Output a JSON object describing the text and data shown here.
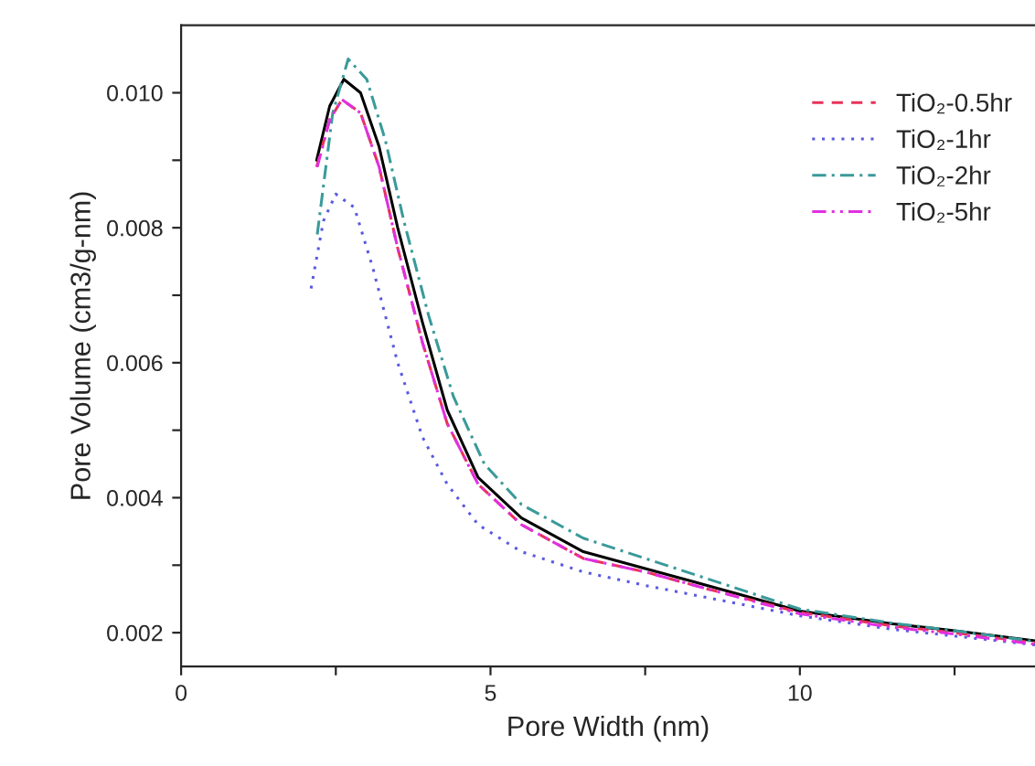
{
  "chart_data": {
    "type": "line",
    "xlabel": "Pore Width (nm)",
    "ylabel": "Pore Volume (cm3/g-nm)",
    "xlim": [
      0,
      13.8
    ],
    "xticks": [
      0,
      {
        "value": 2.5,
        "label": null
      },
      5,
      {
        "value": 7.5,
        "label": null
      },
      10,
      {
        "value": 12.5,
        "label": null
      }
    ],
    "ylim": [
      0.0015,
      0.011
    ],
    "yticks": [
      0.002,
      {
        "value": 0.003,
        "label": null
      },
      0.004,
      {
        "value": 0.005,
        "label": null
      },
      0.006,
      {
        "value": 0.007,
        "label": null
      },
      0.008,
      {
        "value": 0.009,
        "label": null
      },
      {
        "value": 0.01,
        "label": "0.010"
      }
    ],
    "legend": "top right",
    "grid": false,
    "marker": "none",
    "series": [
      {
        "color": "#000000",
        "line_style": "solid",
        "x": [
          2.19,
          2.4,
          2.63,
          2.9,
          3.2,
          3.5,
          3.9,
          4.3,
          4.8,
          5.5,
          6.5,
          7.5,
          8.5,
          10,
          11.5,
          12.5,
          13.8
        ],
        "values": [
          0.009,
          0.0098,
          0.0102,
          0.01,
          0.0092,
          0.008,
          0.0066,
          0.0053,
          0.0043,
          0.0037,
          0.0032,
          0.00295,
          0.0027,
          0.00232,
          0.00213,
          0.00203,
          0.00188
        ]
      },
      {
        "name": "TiO₂-0.5hr",
        "color": "#e8325a",
        "line_style": "dashed",
        "x": [
          2.19,
          2.4,
          2.6,
          2.9,
          3.2,
          3.5,
          3.9,
          4.3,
          4.8,
          5.5,
          6.5,
          7.5,
          8.5,
          10,
          11.5,
          12.5,
          13.8
        ],
        "values": [
          0.0089,
          0.0096,
          0.0099,
          0.0097,
          0.0089,
          0.0077,
          0.0063,
          0.0051,
          0.0042,
          0.0036,
          0.0031,
          0.0029,
          0.00265,
          0.0023,
          0.0021,
          0.002,
          0.00185
        ]
      },
      {
        "name": "TiO₂-1hr",
        "color": "#5a5ae0",
        "line_style": "dotted",
        "x": [
          2.1,
          2.3,
          2.5,
          2.8,
          3.1,
          3.5,
          3.9,
          4.3,
          4.8,
          5.5,
          6.5,
          7.5,
          8.5,
          10,
          11.5,
          12.5,
          13.8
        ],
        "values": [
          0.0071,
          0.0081,
          0.0085,
          0.0083,
          0.0074,
          0.006,
          0.0049,
          0.0042,
          0.0036,
          0.0032,
          0.0029,
          0.0027,
          0.00252,
          0.00225,
          0.00205,
          0.00195,
          0.00182
        ]
      },
      {
        "name": "TiO₂-2hr",
        "color": "#3a9a9a",
        "line_style": "dashdot",
        "x": [
          2.2,
          2.45,
          2.7,
          3.0,
          3.3,
          3.6,
          4.0,
          4.4,
          4.9,
          5.5,
          6.5,
          7.5,
          8.5,
          10,
          11.5,
          12.5,
          13.8
        ],
        "values": [
          0.0079,
          0.0097,
          0.0105,
          0.0102,
          0.0093,
          0.0081,
          0.0067,
          0.0055,
          0.0045,
          0.0039,
          0.0034,
          0.0031,
          0.0028,
          0.00235,
          0.00214,
          0.00203,
          0.00187
        ]
      },
      {
        "name": "TiO₂-5hr",
        "color": "#e030e0",
        "line_style": "dashdotdot",
        "x": [
          2.2,
          2.4,
          2.6,
          2.9,
          3.2,
          3.5,
          3.9,
          4.3,
          4.8,
          5.5,
          6.5,
          7.5,
          8.5,
          10,
          11.5,
          12.5,
          13.8
        ],
        "values": [
          0.0089,
          0.0096,
          0.0099,
          0.0097,
          0.0089,
          0.0077,
          0.0063,
          0.0051,
          0.0042,
          0.0036,
          0.0031,
          0.0029,
          0.00265,
          0.00228,
          0.00208,
          0.00198,
          0.00183
        ]
      }
    ]
  }
}
